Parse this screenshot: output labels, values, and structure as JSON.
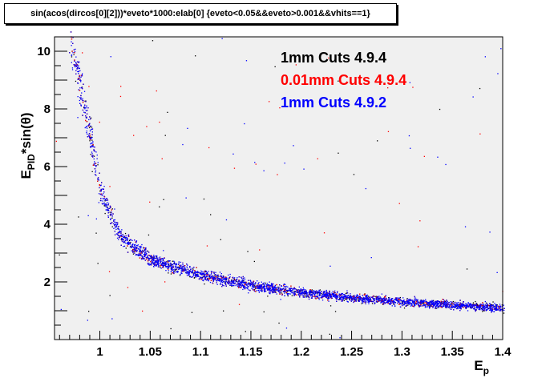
{
  "title": "sin(acos(dircos[0][2]))*eveto*1000:elab[0] {eveto<0.05&&eveto>0.001&&vhits==1}",
  "colors": {
    "frame_bg": "#f0f0f0",
    "series_black": "#000000",
    "series_red": "#ff0000",
    "series_blue": "#0000ff"
  },
  "chart_data": {
    "type": "scatter",
    "xlabel_main": "E",
    "xlabel_sub": "p",
    "ylabel_main": "E",
    "ylabel_sub": "PID",
    "ylabel_suffix": "*sin(θ)",
    "xlim": [
      0.955,
      1.4
    ],
    "ylim": [
      0,
      10.5
    ],
    "x_ticks": [
      1,
      1.05,
      1.1,
      1.15,
      1.2,
      1.25,
      1.3,
      1.35,
      1.4
    ],
    "x_tick_labels": [
      "1",
      "1.05",
      "1.1",
      "1.15",
      "1.2",
      "1.25",
      "1.3",
      "1.35",
      "1.4"
    ],
    "y_ticks": [
      2,
      4,
      6,
      8,
      10
    ],
    "y_tick_labels": [
      "2",
      "4",
      "6",
      "8",
      "10"
    ],
    "grid": false,
    "legend_placement": "top-right",
    "series": [
      {
        "name": "1mm Cuts 4.9.4",
        "color": "#000000",
        "curve": [
          [
            0.97,
            10.4
          ],
          [
            0.98,
            8.9
          ],
          [
            0.99,
            7.1
          ],
          [
            1.0,
            5.2
          ],
          [
            1.02,
            3.6
          ],
          [
            1.05,
            2.8
          ],
          [
            1.1,
            2.25
          ],
          [
            1.15,
            1.9
          ],
          [
            1.2,
            1.65
          ],
          [
            1.25,
            1.48
          ],
          [
            1.3,
            1.32
          ],
          [
            1.35,
            1.22
          ],
          [
            1.4,
            1.1
          ]
        ]
      },
      {
        "name": "0.01mm Cuts 4.9.4",
        "color": "#ff0000",
        "curve": [
          [
            0.97,
            10.4
          ],
          [
            0.98,
            8.9
          ],
          [
            0.99,
            7.1
          ],
          [
            1.0,
            5.2
          ],
          [
            1.02,
            3.6
          ],
          [
            1.05,
            2.8
          ],
          [
            1.1,
            2.25
          ],
          [
            1.15,
            1.9
          ],
          [
            1.2,
            1.65
          ],
          [
            1.25,
            1.48
          ],
          [
            1.3,
            1.32
          ],
          [
            1.35,
            1.22
          ],
          [
            1.4,
            1.1
          ]
        ]
      },
      {
        "name": "1mm Cuts 4.9.2",
        "color": "#0000ff",
        "curve": [
          [
            0.97,
            10.4
          ],
          [
            0.98,
            8.9
          ],
          [
            0.99,
            7.1
          ],
          [
            1.0,
            5.2
          ],
          [
            1.02,
            3.6
          ],
          [
            1.05,
            2.8
          ],
          [
            1.1,
            2.25
          ],
          [
            1.15,
            1.9
          ],
          [
            1.2,
            1.65
          ],
          [
            1.25,
            1.48
          ],
          [
            1.3,
            1.32
          ],
          [
            1.35,
            1.22
          ],
          [
            1.4,
            1.1
          ]
        ]
      }
    ]
  }
}
